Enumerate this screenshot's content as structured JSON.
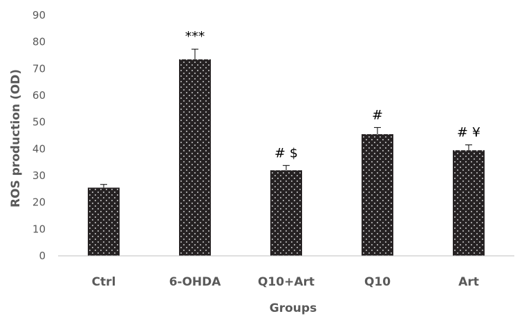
{
  "chart_data": {
    "type": "bar",
    "categories": [
      "Ctrl",
      "6-OHDA",
      "Q10+Art",
      "Q10",
      "Art"
    ],
    "values": [
      25.5,
      73.5,
      32,
      45.5,
      39.5
    ],
    "errors": [
      1.2,
      3.8,
      1.8,
      2.5,
      2.0
    ],
    "annotations": [
      "",
      "***",
      "# $",
      "#",
      "# ¥"
    ],
    "xlabel": "Groups",
    "ylabel": "ROS production (OD)",
    "ylim": [
      0,
      90
    ],
    "yticks": [
      0,
      10,
      20,
      30,
      40,
      50,
      60,
      70,
      80,
      90
    ],
    "grid": false,
    "legend": "none",
    "colors": {
      "bar": "#262223",
      "dot": "#ffffff",
      "axis": "#bfbfbf",
      "text": "#595959"
    }
  }
}
